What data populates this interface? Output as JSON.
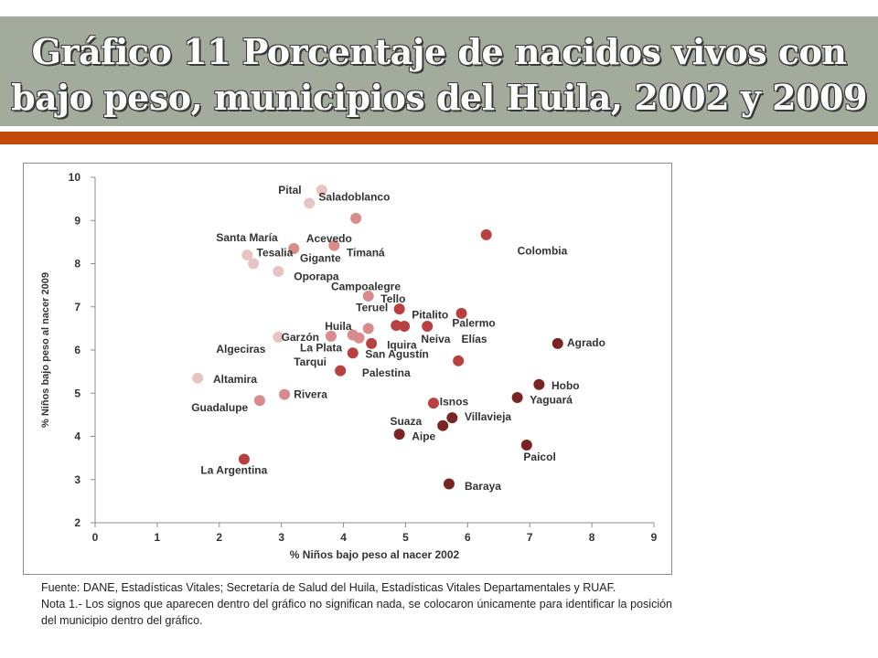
{
  "header": {
    "title_line1": "Gráfico 11  Porcentaje de nacidos vivos con",
    "title_line2": "bajo peso, municipios del Huila, 2002 y 2009"
  },
  "colors": {
    "title_band": "#a3ac9c",
    "accent": "#c0490b",
    "point_light": "#e8c3c3",
    "point_mid": "#d98a8a",
    "point_dark": "#b8413f",
    "point_darkest": "#7a2424"
  },
  "chart_data": {
    "type": "scatter",
    "xlabel": "% Niños bajo peso al nacer 2002",
    "ylabel": "% Niños bajo peso al nacer 2009",
    "xlim": [
      0,
      9
    ],
    "ylim": [
      2,
      10
    ],
    "xticks": [
      "0",
      "1",
      "2",
      "3",
      "4",
      "5",
      "6",
      "7",
      "8",
      "9"
    ],
    "yticks": [
      "2",
      "3",
      "4",
      "5",
      "6",
      "7",
      "8",
      "9",
      "10"
    ],
    "grid": false,
    "legend": "none",
    "points": [
      {
        "x": 3.65,
        "y": 9.7,
        "shade": "light"
      },
      {
        "x": 3.45,
        "y": 9.4,
        "shade": "light"
      },
      {
        "x": 4.2,
        "y": 9.05,
        "shade": "mid"
      },
      {
        "x": 2.45,
        "y": 8.2,
        "shade": "light"
      },
      {
        "x": 2.55,
        "y": 8.0,
        "shade": "light"
      },
      {
        "x": 3.2,
        "y": 8.35,
        "shade": "mid"
      },
      {
        "x": 3.85,
        "y": 8.42,
        "shade": "mid"
      },
      {
        "x": 2.95,
        "y": 7.82,
        "shade": "light"
      },
      {
        "x": 6.3,
        "y": 8.67,
        "shade": "dark"
      },
      {
        "x": 4.4,
        "y": 7.25,
        "shade": "mid"
      },
      {
        "x": 4.9,
        "y": 6.95,
        "shade": "dark"
      },
      {
        "x": 5.9,
        "y": 6.85,
        "shade": "dark"
      },
      {
        "x": 4.4,
        "y": 6.5,
        "shade": "mid"
      },
      {
        "x": 4.85,
        "y": 6.57,
        "shade": "dark"
      },
      {
        "x": 4.98,
        "y": 6.55,
        "shade": "dark"
      },
      {
        "x": 5.35,
        "y": 6.55,
        "shade": "dark"
      },
      {
        "x": 2.95,
        "y": 6.3,
        "shade": "light"
      },
      {
        "x": 3.8,
        "y": 6.32,
        "shade": "mid"
      },
      {
        "x": 4.15,
        "y": 6.35,
        "shade": "mid"
      },
      {
        "x": 4.25,
        "y": 6.28,
        "shade": "mid"
      },
      {
        "x": 4.45,
        "y": 6.15,
        "shade": "dark"
      },
      {
        "x": 4.15,
        "y": 5.93,
        "shade": "dark"
      },
      {
        "x": 5.85,
        "y": 5.75,
        "shade": "dark"
      },
      {
        "x": 7.45,
        "y": 6.15,
        "shade": "darkest"
      },
      {
        "x": 3.95,
        "y": 5.52,
        "shade": "dark"
      },
      {
        "x": 1.65,
        "y": 5.35,
        "shade": "light"
      },
      {
        "x": 7.15,
        "y": 5.2,
        "shade": "darkest"
      },
      {
        "x": 3.05,
        "y": 4.97,
        "shade": "mid"
      },
      {
        "x": 2.65,
        "y": 4.83,
        "shade": "mid"
      },
      {
        "x": 6.8,
        "y": 4.9,
        "shade": "darkest"
      },
      {
        "x": 5.45,
        "y": 4.77,
        "shade": "dark"
      },
      {
        "x": 5.75,
        "y": 4.43,
        "shade": "darkest"
      },
      {
        "x": 5.6,
        "y": 4.25,
        "shade": "darkest"
      },
      {
        "x": 4.9,
        "y": 4.05,
        "shade": "darkest"
      },
      {
        "x": 6.95,
        "y": 3.8,
        "shade": "darkest"
      },
      {
        "x": 2.4,
        "y": 3.47,
        "shade": "dark"
      },
      {
        "x": 5.7,
        "y": 2.9,
        "shade": "darkest"
      }
    ],
    "annotations": [
      {
        "text": "Pital",
        "x": 2.95,
        "y": 9.7
      },
      {
        "text": "Saladoblanco",
        "x": 3.6,
        "y": 9.55
      },
      {
        "text": "Santa María",
        "x": 1.95,
        "y": 8.6
      },
      {
        "text": "Acevedo",
        "x": 3.4,
        "y": 8.58
      },
      {
        "text": "Tesalia",
        "x": 2.6,
        "y": 8.25
      },
      {
        "text": "Timaná",
        "x": 4.05,
        "y": 8.25
      },
      {
        "text": "Gigante",
        "x": 3.3,
        "y": 8.13
      },
      {
        "text": "Colombia",
        "x": 6.8,
        "y": 8.3
      },
      {
        "text": "Oporapa",
        "x": 3.2,
        "y": 7.7
      },
      {
        "text": "Campoalegre",
        "x": 3.8,
        "y": 7.47
      },
      {
        "text": "Tello",
        "x": 4.6,
        "y": 7.18
      },
      {
        "text": "Teruel",
        "x": 4.2,
        "y": 6.98
      },
      {
        "text": "Pitalito",
        "x": 5.1,
        "y": 6.82
      },
      {
        "text": "Palermo",
        "x": 5.75,
        "y": 6.62
      },
      {
        "text": "Huila",
        "x": 3.7,
        "y": 6.55
      },
      {
        "text": "Garzón",
        "x": 3.0,
        "y": 6.3
      },
      {
        "text": "Neiva",
        "x": 5.25,
        "y": 6.25
      },
      {
        "text": "Elías",
        "x": 5.9,
        "y": 6.25
      },
      {
        "text": "Algeciras",
        "x": 1.95,
        "y": 6.02
      },
      {
        "text": "La Plata",
        "x": 3.3,
        "y": 6.05
      },
      {
        "text": "Iquira",
        "x": 4.7,
        "y": 6.12
      },
      {
        "text": "Agrado",
        "x": 7.6,
        "y": 6.17
      },
      {
        "text": "San Agustín",
        "x": 4.35,
        "y": 5.9
      },
      {
        "text": "Tarqui",
        "x": 3.2,
        "y": 5.72
      },
      {
        "text": "Palestina",
        "x": 4.3,
        "y": 5.47
      },
      {
        "text": "Altamira",
        "x": 1.9,
        "y": 5.32
      },
      {
        "text": "Hobo",
        "x": 7.35,
        "y": 5.17
      },
      {
        "text": "Rivera",
        "x": 3.2,
        "y": 4.97
      },
      {
        "text": "Yaguará",
        "x": 7.0,
        "y": 4.85
      },
      {
        "text": "Isnos",
        "x": 5.55,
        "y": 4.8
      },
      {
        "text": "Guadalupe",
        "x": 1.55,
        "y": 4.67
      },
      {
        "text": "Villavieja",
        "x": 5.95,
        "y": 4.45
      },
      {
        "text": "Suaza",
        "x": 4.75,
        "y": 4.35
      },
      {
        "text": "Aipe",
        "x": 5.1,
        "y": 4.0
      },
      {
        "text": "Paicol",
        "x": 6.9,
        "y": 3.52
      },
      {
        "text": "La Argentina",
        "x": 1.7,
        "y": 3.22
      },
      {
        "text": "Baraya",
        "x": 5.95,
        "y": 2.85
      }
    ]
  },
  "footnote": {
    "source": "Fuente: DANE, Estadísticas Vitales; Secretaría de Salud del Huila, Estadísticas Vitales Departamentales y RUAF.",
    "note": "Nota 1.- Los signos que aparecen dentro del gráfico no significan nada, se colocaron únicamente para identificar la posición del municipio dentro del gráfico."
  }
}
